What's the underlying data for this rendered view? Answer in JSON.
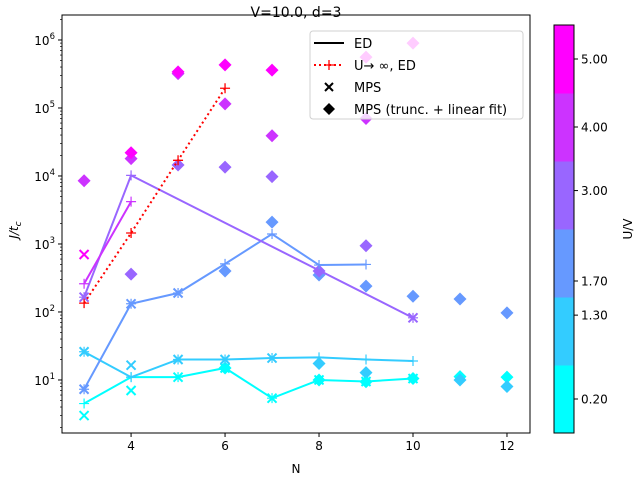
{
  "chart_data": {
    "type": "line",
    "title": "V=10.0, d=3",
    "xlabel": "N",
    "ylabel": "J/t",
    "ylabel_sub": "c",
    "xscale": "linear",
    "yscale": "log",
    "xlim": [
      2.53,
      12.49
    ],
    "ylim": [
      1.66,
      2330000
    ],
    "xticks": [
      4,
      6,
      8,
      10,
      12
    ],
    "xtick_labels": [
      "4",
      "6",
      "8",
      "10",
      "12"
    ],
    "yticks_exp": [
      1,
      2,
      3,
      4,
      5,
      6
    ],
    "ytick_base": "10",
    "grid": false,
    "colorbar": {
      "label": "U/V",
      "ticks": [
        0.2,
        1.3,
        1.7,
        3.0,
        4.0,
        5.0
      ],
      "tick_labels": [
        "0.20",
        "1.30",
        "1.70",
        "3.00",
        "4.00",
        "5.00"
      ],
      "colors": [
        "#00ffff",
        "#33ccff",
        "#6699ff",
        "#9966ff",
        "#cc33ff",
        "#ff00ff"
      ]
    },
    "legend": {
      "placement": "top-right",
      "entries": [
        {
          "label": "ED",
          "style": "solid-line"
        },
        {
          "label": "U→ ∞, ED",
          "style": "red-dotted-plus"
        },
        {
          "label": "MPS",
          "style": "x-marker"
        },
        {
          "label": "MPS (trunc. + linear fit)",
          "style": "diamond-marker"
        }
      ]
    },
    "series": {
      "ed": [
        {
          "U": 0.2,
          "N": [
            3,
            4,
            5,
            6,
            7,
            8,
            9,
            10
          ],
          "values": [
            4.5,
            11,
            11,
            15,
            5.4,
            10,
            9.5,
            10.5
          ]
        },
        {
          "U": 1.3,
          "N": [
            3,
            4,
            5,
            6,
            7,
            8,
            9,
            10
          ],
          "values": [
            26,
            11,
            20,
            20,
            21,
            21.5,
            20,
            19
          ]
        },
        {
          "U": 1.7,
          "N": [
            3,
            4,
            5,
            6,
            7,
            8,
            9
          ],
          "values": [
            7.3,
            132,
            190,
            510,
            1400,
            490,
            500
          ]
        },
        {
          "U": 3.0,
          "N": [
            3,
            4,
            10
          ],
          "values": [
            165,
            10200,
            82
          ]
        },
        {
          "U": 4.0,
          "N": [
            3,
            4
          ],
          "values": [
            260,
            4200
          ]
        }
      ],
      "u_inf_ed": {
        "color": "#ff0000",
        "N": [
          3,
          4,
          5,
          6
        ],
        "values": [
          135,
          1450,
          17000,
          195000
        ]
      },
      "mps": [
        {
          "U": 0.2,
          "N": [
            3,
            4,
            5,
            6,
            7,
            8,
            9,
            10
          ],
          "values": [
            3.0,
            7.0,
            11,
            15,
            5.4,
            10,
            9.5,
            10.5
          ]
        },
        {
          "U": 1.3,
          "N": [
            3,
            4,
            5,
            6,
            7
          ],
          "values": [
            26,
            16.5,
            20,
            20,
            21
          ]
        },
        {
          "U": 1.7,
          "N": [
            3,
            4,
            5
          ],
          "values": [
            7.3,
            132,
            190
          ]
        },
        {
          "U": 3.0,
          "N": [
            3,
            10
          ],
          "values": [
            165,
            82
          ]
        },
        {
          "U": 5.0,
          "N": [
            3
          ],
          "values": [
            700
          ]
        }
      ],
      "mps_fit": [
        {
          "U": 0.2,
          "N": [
            6,
            8,
            9,
            10,
            11,
            12
          ],
          "values": [
            15,
            10,
            9.4,
            10.5,
            11.2,
            11
          ]
        },
        {
          "U": 1.3,
          "N": [
            8,
            9,
            11,
            12
          ],
          "values": [
            17.5,
            12.8,
            10,
            8.0
          ]
        },
        {
          "U": 1.7,
          "N": [
            6,
            7,
            8,
            9,
            10,
            11,
            12
          ],
          "values": [
            400,
            2100,
            350,
            240,
            170,
            155,
            97
          ]
        },
        {
          "U": 3.0,
          "N": [
            4,
            5,
            6,
            7,
            8,
            9
          ],
          "values": [
            360,
            14500,
            13500,
            9800,
            400,
            940
          ]
        },
        {
          "U": 4.0,
          "N": [
            3,
            4,
            5,
            6,
            7,
            9
          ],
          "values": [
            8500,
            18000,
            320000,
            115000,
            39000,
            70000
          ]
        },
        {
          "U": 5.0,
          "N": [
            4,
            5,
            6,
            7,
            9,
            10
          ],
          "values": [
            22000,
            340000,
            430000,
            360000,
            560000,
            900000
          ]
        }
      ]
    }
  }
}
